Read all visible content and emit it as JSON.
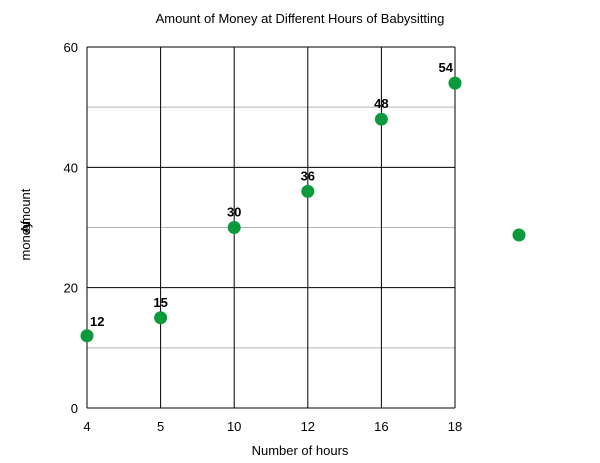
{
  "chart_data": {
    "type": "scatter",
    "title": "Amount of Money at Different Hours of Babysitting",
    "xlabel": "Number of hours",
    "ylabel": [
      "Amount",
      "of",
      "money"
    ],
    "x_categories": [
      "4",
      "5",
      "10",
      "12",
      "16",
      "18"
    ],
    "y_ticks": [
      "0",
      "20",
      "40",
      "60"
    ],
    "ylim": [
      0,
      60
    ],
    "major_grid": [
      0,
      20,
      40,
      60
    ],
    "minor_grid": [
      10,
      30,
      50
    ],
    "points": [
      {
        "x": "4",
        "y": 12,
        "label": "12"
      },
      {
        "x": "5",
        "y": 15,
        "label": "15"
      },
      {
        "x": "10",
        "y": 30,
        "label": "30"
      },
      {
        "x": "12",
        "y": 36,
        "label": "36"
      },
      {
        "x": "16",
        "y": 48,
        "label": "48"
      },
      {
        "x": "18",
        "y": 54,
        "label": "54"
      }
    ],
    "legend": {
      "placement": "right",
      "marker_color": "#0b9a3b"
    },
    "marker_color": "#0b9a3b"
  }
}
